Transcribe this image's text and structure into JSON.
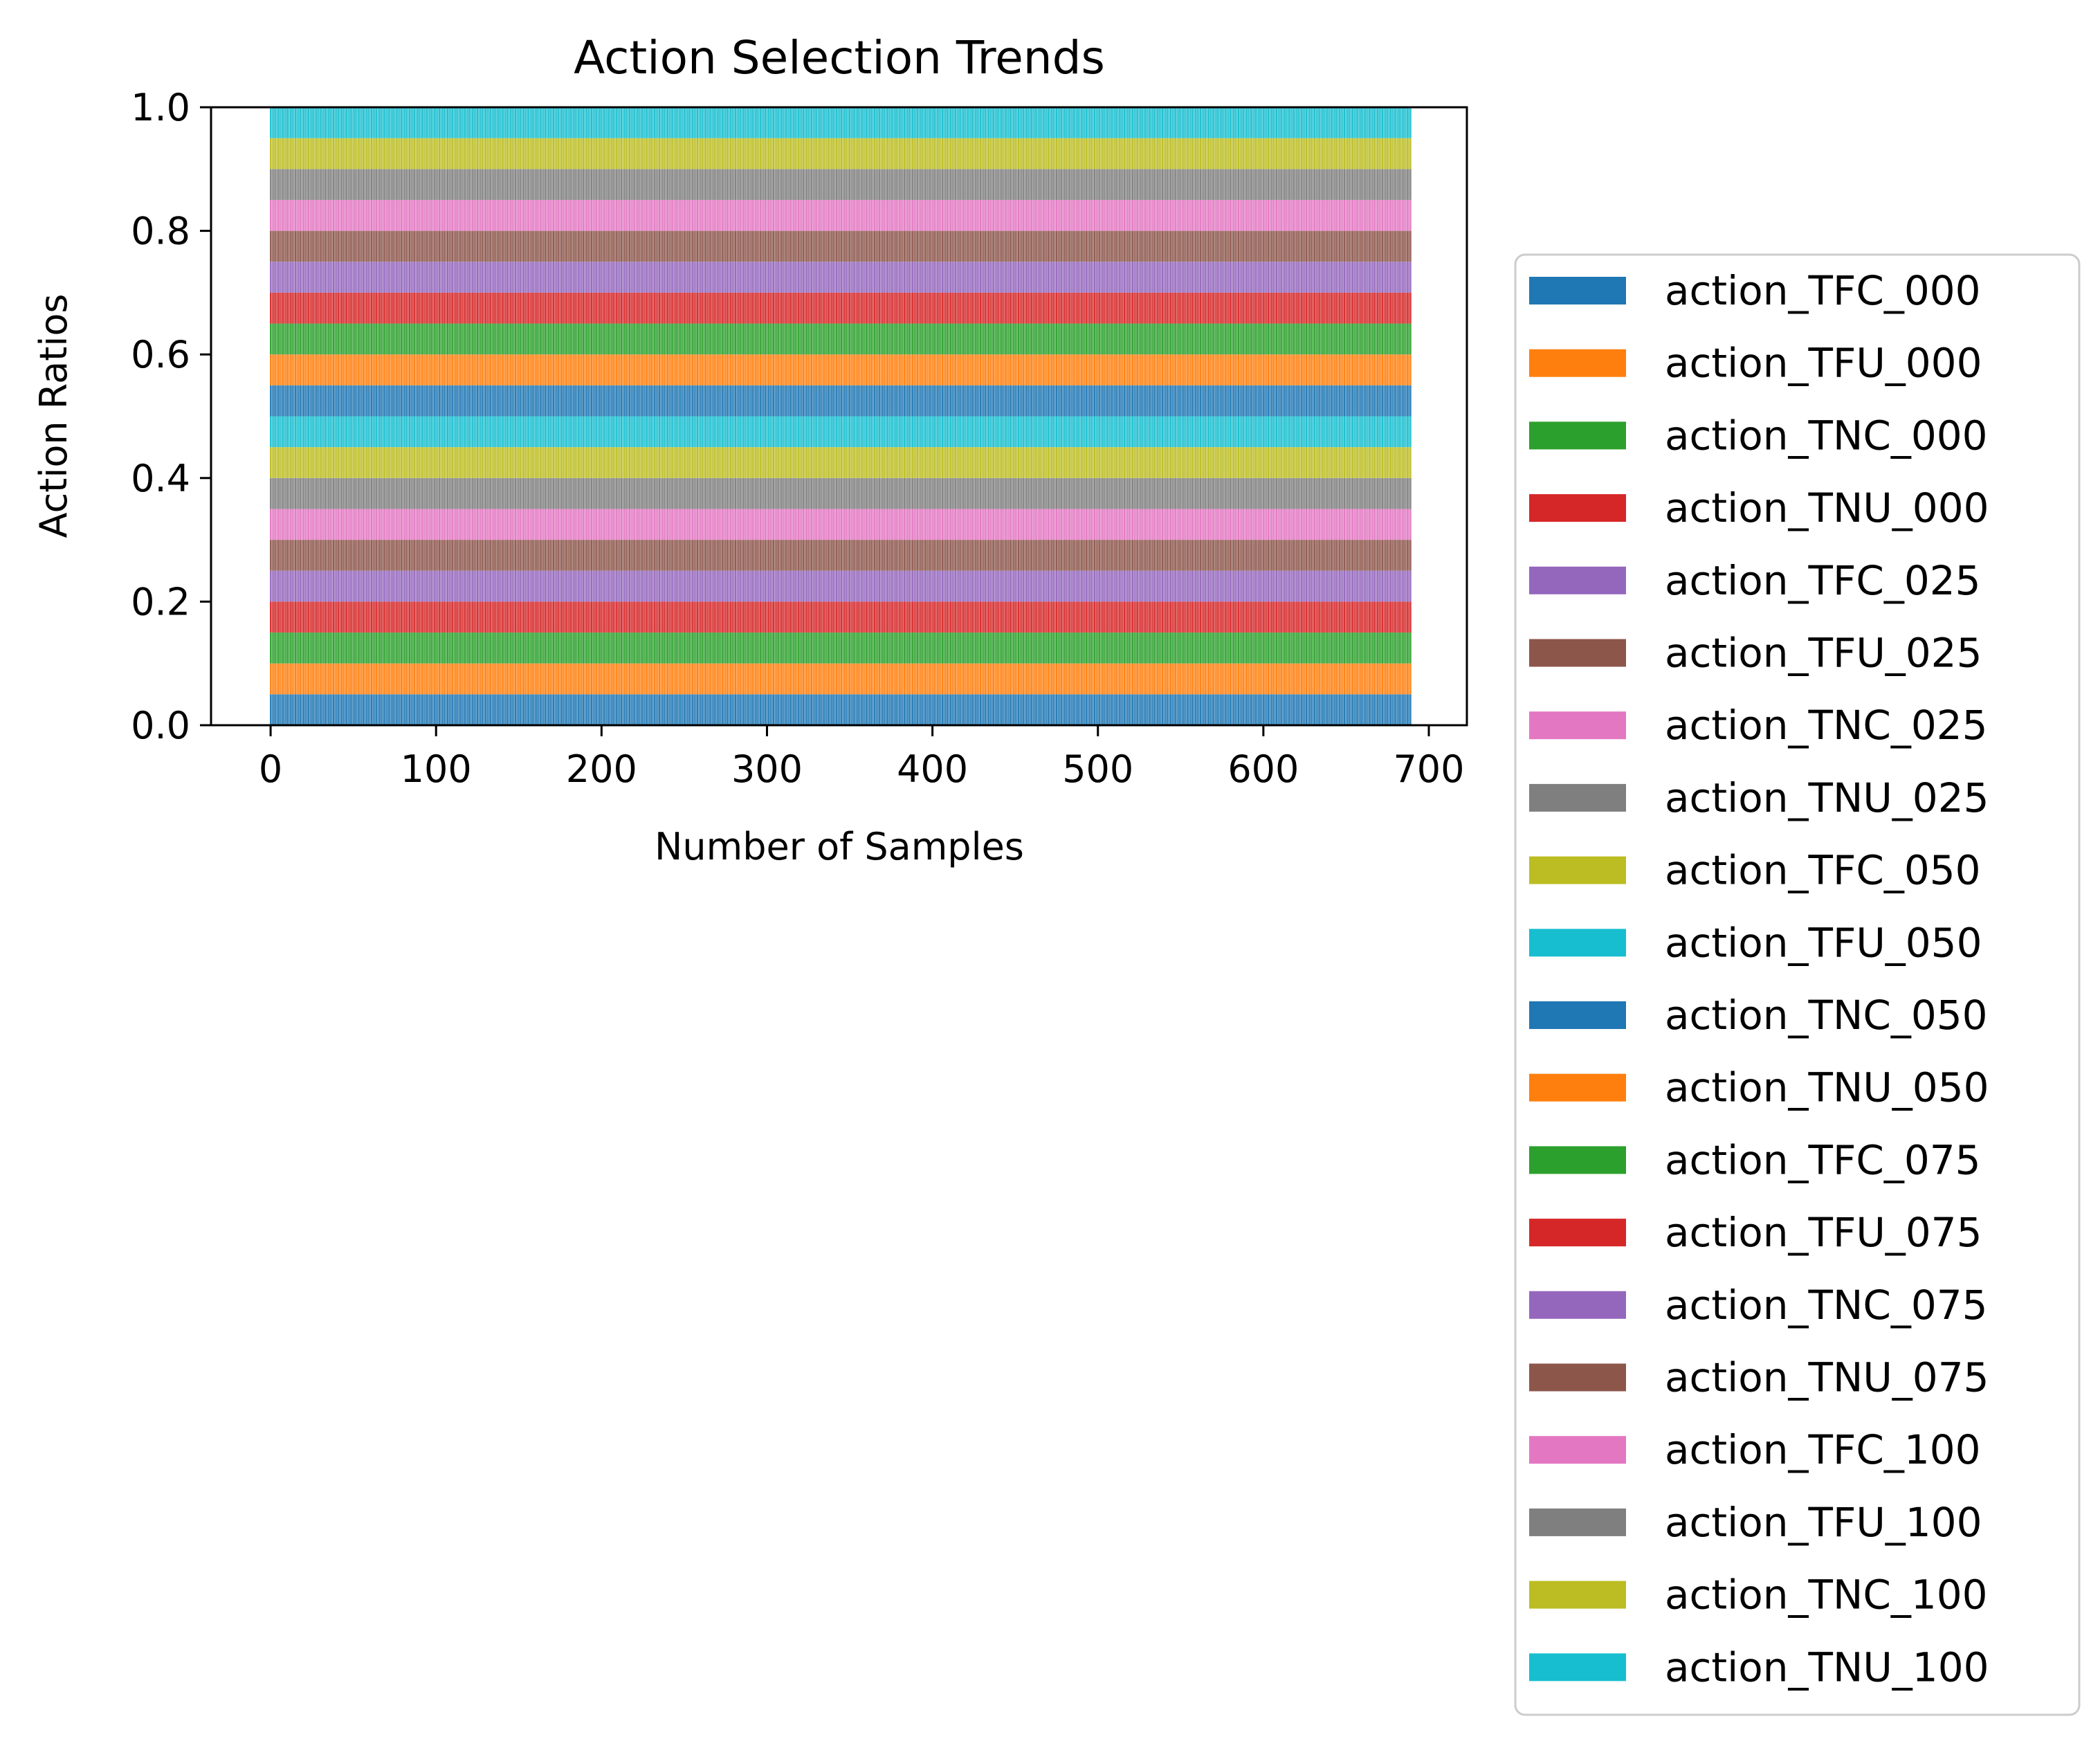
{
  "chart_data": {
    "type": "bar",
    "stacked": true,
    "title": "Action Selection Trends",
    "xlabel": "Number of Samples",
    "ylabel": "Action Ratios",
    "xlim": [
      -36,
      723
    ],
    "ylim": [
      0.0,
      1.0
    ],
    "x_count": 690,
    "x_start": 0,
    "x_end": 689,
    "x_ticks": [
      0,
      100,
      200,
      300,
      400,
      500,
      600,
      700
    ],
    "y_ticks": [
      0.0,
      0.2,
      0.4,
      0.6,
      0.8,
      1.0
    ],
    "y_tick_labels": [
      "0.0",
      "0.2",
      "0.4",
      "0.6",
      "0.8",
      "1.0"
    ],
    "x_tick_labels": [
      "0",
      "100",
      "200",
      "300",
      "400",
      "500",
      "600",
      "700"
    ],
    "grid": false,
    "legend_position": "right, outside plot",
    "per_sample_ratio_each_series": 0.05,
    "series": [
      {
        "name": "action_TFC_000",
        "color": "#1f77b4"
      },
      {
        "name": "action_TFU_000",
        "color": "#ff7f0e"
      },
      {
        "name": "action_TNC_000",
        "color": "#2ca02c"
      },
      {
        "name": "action_TNU_000",
        "color": "#d62728"
      },
      {
        "name": "action_TFC_025",
        "color": "#9467bd"
      },
      {
        "name": "action_TFU_025",
        "color": "#8c564b"
      },
      {
        "name": "action_TNC_025",
        "color": "#e377c2"
      },
      {
        "name": "action_TNU_025",
        "color": "#7f7f7f"
      },
      {
        "name": "action_TFC_050",
        "color": "#bcbd22"
      },
      {
        "name": "action_TFU_050",
        "color": "#17becf"
      },
      {
        "name": "action_TNC_050",
        "color": "#1f77b4"
      },
      {
        "name": "action_TNU_050",
        "color": "#ff7f0e"
      },
      {
        "name": "action_TFC_075",
        "color": "#2ca02c"
      },
      {
        "name": "action_TFU_075",
        "color": "#d62728"
      },
      {
        "name": "action_TNC_075",
        "color": "#9467bd"
      },
      {
        "name": "action_TNU_075",
        "color": "#8c564b"
      },
      {
        "name": "action_TFC_100",
        "color": "#e377c2"
      },
      {
        "name": "action_TFU_100",
        "color": "#7f7f7f"
      },
      {
        "name": "action_TNC_100",
        "color": "#bcbd22"
      },
      {
        "name": "action_TNU_100",
        "color": "#17becf"
      }
    ]
  }
}
